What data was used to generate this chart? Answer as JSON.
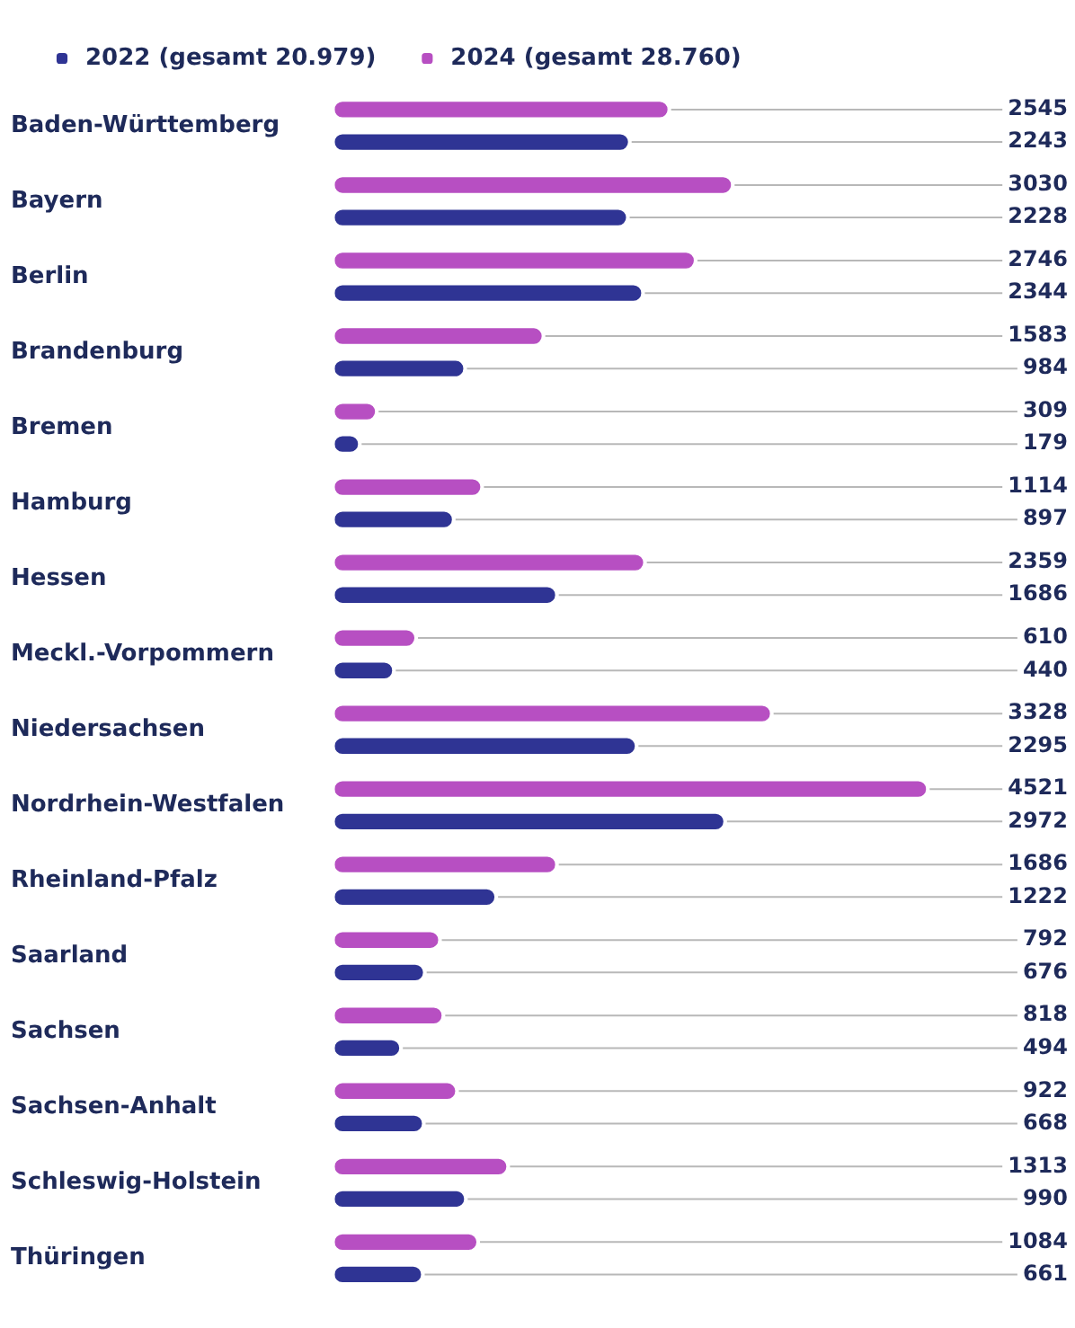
{
  "chart_data": {
    "type": "bar",
    "orientation": "horizontal",
    "categories": [
      "Baden-Württemberg",
      "Bayern",
      "Berlin",
      "Brandenburg",
      "Bremen",
      "Hamburg",
      "Hessen",
      "Meckl.-Vorpommern",
      "Niedersachsen",
      "Nordrhein-Westfalen",
      "Rheinland-Pfalz",
      "Saarland",
      "Sachsen",
      "Sachsen-Anhalt",
      "Schleswig-Holstein",
      "Thüringen"
    ],
    "series": [
      {
        "name": "2024 (gesamt 28.760)",
        "color": "#b74fc2",
        "values": [
          2545,
          3030,
          2746,
          1583,
          309,
          1114,
          2359,
          610,
          3328,
          4521,
          1686,
          792,
          818,
          922,
          1313,
          1084
        ],
        "value_labels": [
          "2545",
          "3030",
          "2746",
          "1583",
          "309",
          "1114",
          "2359",
          "610",
          "3328",
          "4521",
          "1686",
          "792",
          "818",
          "922",
          "1313",
          "1084"
        ]
      },
      {
        "name": "2022 (gesamt 20.979)",
        "color": "#2f3494",
        "values": [
          2243,
          2228,
          2344,
          984,
          179,
          897,
          1686,
          440,
          2295,
          2972,
          1222,
          676,
          494,
          668,
          990,
          661
        ],
        "value_labels": [
          "2243",
          "2228",
          "2344",
          "984",
          "179",
          "897",
          "1686",
          "440",
          "2295",
          "2972",
          "1222",
          "676",
          "494",
          "668",
          "990",
          "661"
        ]
      }
    ],
    "tick_labels": "y",
    "legend": "top left"
  }
}
